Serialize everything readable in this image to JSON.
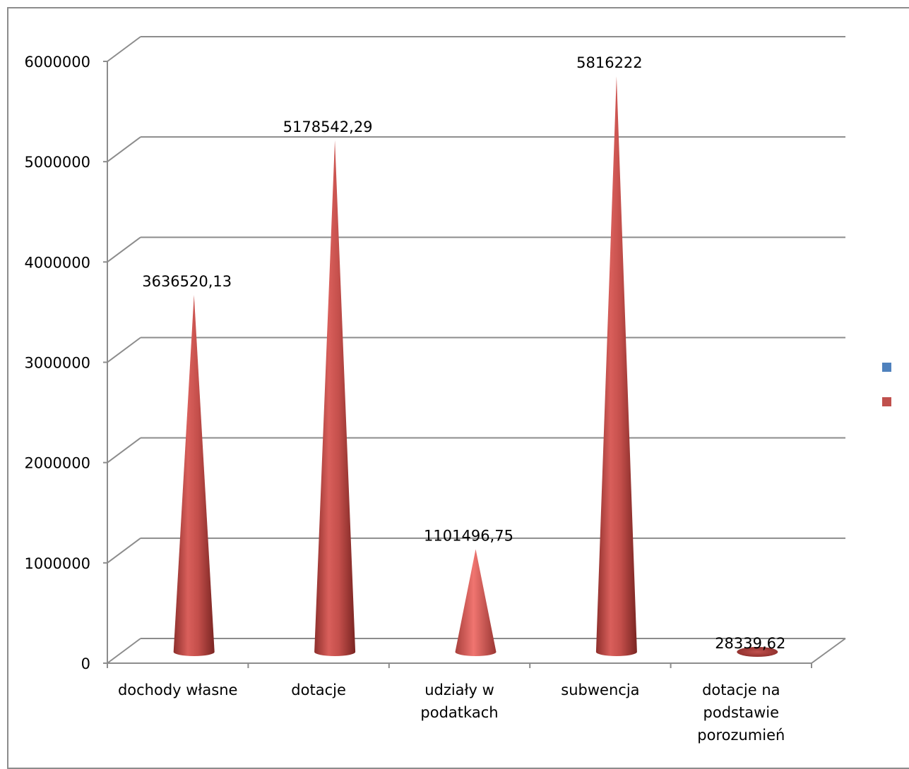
{
  "chart_data": {
    "type": "bar",
    "shape": "cone-3d",
    "categories": [
      [
        "dochody własne"
      ],
      [
        "dotacje"
      ],
      [
        "udziały w",
        "podatkach"
      ],
      [
        "subwencja"
      ],
      [
        "dotacje na",
        "podstawie",
        "porozumień"
      ]
    ],
    "series": [
      {
        "values": [
          3636520.13,
          5178542.29,
          1101496.75,
          5816222,
          28339.62
        ],
        "color": "#c0504d"
      }
    ],
    "data_labels": [
      "3636520,13",
      "5178542,29",
      "1101496,75",
      "5816222",
      "28339,62"
    ],
    "yticks": [
      {
        "value": 0,
        "label": "0"
      },
      {
        "value": 1000000,
        "label": "1000000"
      },
      {
        "value": 2000000,
        "label": "2000000"
      },
      {
        "value": 3000000,
        "label": "3000000"
      },
      {
        "value": 4000000,
        "label": "4000000"
      },
      {
        "value": 5000000,
        "label": "5000000"
      },
      {
        "value": 6000000,
        "label": "6000000"
      }
    ],
    "ylim": [
      0,
      6000000
    ],
    "grid": true,
    "legend": {
      "position": "right",
      "entries": [
        {
          "name": "",
          "color": "#4f81bd"
        },
        {
          "name": "",
          "color": "#c0504d"
        }
      ]
    },
    "title": "",
    "xlabel": "",
    "ylabel": ""
  }
}
